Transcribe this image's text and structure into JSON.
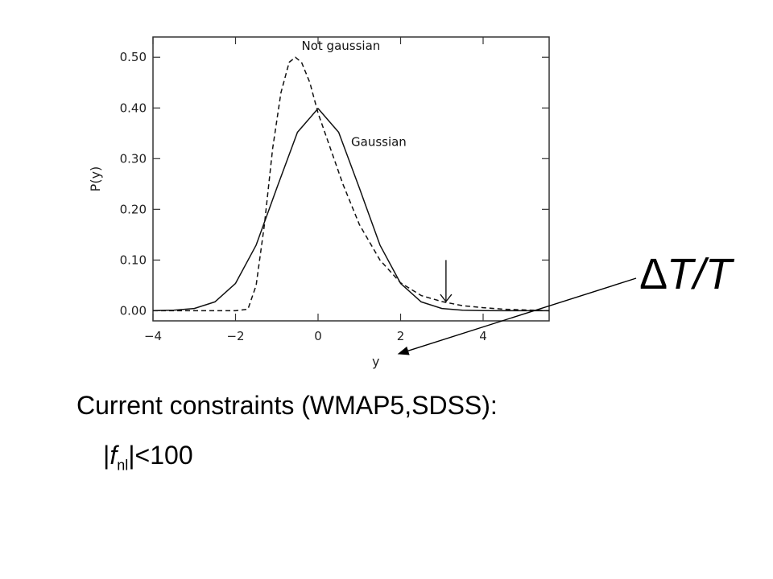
{
  "chart_data": {
    "type": "line",
    "ylabel": "P(y)",
    "xlabel": "y",
    "xlim": [
      -4,
      5.6
    ],
    "ylim": [
      -0.02,
      0.54
    ],
    "x_ticks": [
      -4,
      -2,
      0,
      2,
      4
    ],
    "x_tick_labels": [
      "−4",
      "−2",
      "0",
      "2",
      "4"
    ],
    "y_ticks": [
      0.0,
      0.1,
      0.2,
      0.3,
      0.4,
      0.5
    ],
    "y_tick_labels": [
      "0.00",
      "0.10",
      "0.20",
      "0.30",
      "0.40",
      "0.50"
    ],
    "series": [
      {
        "name": "Gaussian",
        "style": "solid",
        "x": [
          -4.0,
          -3.5,
          -3.0,
          -2.5,
          -2.0,
          -1.5,
          -1.0,
          -0.5,
          0.0,
          0.5,
          1.0,
          1.5,
          2.0,
          2.5,
          3.0,
          3.5,
          4.0,
          4.5,
          5.0,
          5.6
        ],
        "y": [
          0.0001,
          0.0009,
          0.0044,
          0.0175,
          0.054,
          0.1295,
          0.242,
          0.352,
          0.399,
          0.352,
          0.242,
          0.1295,
          0.054,
          0.0175,
          0.0044,
          0.0009,
          0.0001,
          0.0,
          0.0,
          0.0
        ]
      },
      {
        "name": "Not gaussian",
        "style": "dashed",
        "x": [
          -4.0,
          -2.0,
          -1.7,
          -1.5,
          -1.3,
          -1.1,
          -0.9,
          -0.7,
          -0.55,
          -0.4,
          -0.2,
          0.0,
          0.3,
          0.6,
          1.0,
          1.5,
          2.0,
          2.5,
          3.0,
          3.5,
          4.0,
          4.5,
          5.0,
          5.6
        ],
        "y": [
          0.0,
          0.0,
          0.003,
          0.05,
          0.17,
          0.32,
          0.43,
          0.49,
          0.5,
          0.49,
          0.45,
          0.39,
          0.32,
          0.25,
          0.17,
          0.1,
          0.055,
          0.03,
          0.018,
          0.01,
          0.006,
          0.003,
          0.0015,
          0.0
        ]
      }
    ],
    "annotations": [
      {
        "text": "Not gaussian",
        "x": -0.4,
        "y": 0.515
      },
      {
        "text": "Gaussian",
        "x": 0.8,
        "y": 0.325
      }
    ],
    "marker_arrow_at_x": 3.1
  },
  "slide": {
    "delta_label": "∆T/T",
    "caption": "Current constraints (WMAP5,SDSS):",
    "constraint_prefix": "|",
    "constraint_symbol": "f",
    "constraint_sub": "nl",
    "constraint_suffix": "|<100"
  }
}
